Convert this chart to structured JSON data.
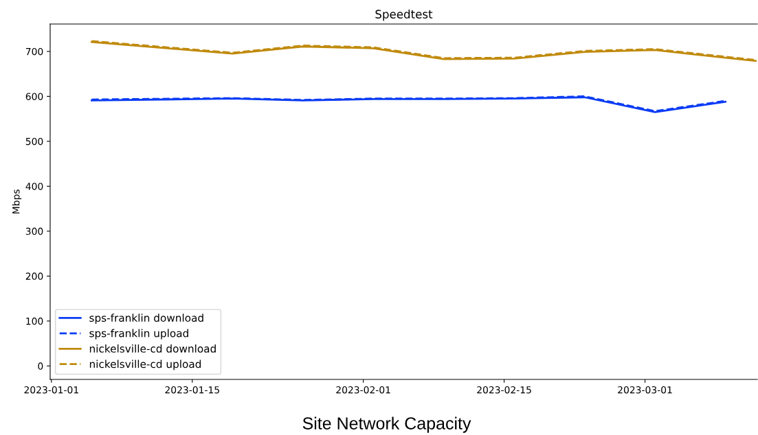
{
  "chart_data": {
    "type": "line",
    "title": "Speedtest",
    "ylabel": "Mbps",
    "annotations": [
      "Site Network Capacity"
    ],
    "x": [
      "2023-01-05",
      "2023-01-19",
      "2023-01-26",
      "2023-02-02",
      "2023-02-09",
      "2023-02-16",
      "2023-02-23",
      "2023-03-02",
      "2023-03-09"
    ],
    "series": [
      {
        "name": "sps-franklin download",
        "color": "#0a3cf5",
        "line_style": "solid",
        "values": [
          591,
          595,
          591,
          594,
          594,
          595,
          598,
          565,
          588
        ]
      },
      {
        "name": "sps-franklin upload",
        "color": "#0a3cf5",
        "line_style": "dashed",
        "values": [
          593,
          596,
          592,
          595,
          595,
          596,
          600,
          567,
          590
        ]
      },
      {
        "name": "nickelsville-cd download",
        "color": "#c08a0c",
        "line_style": "solid",
        "x": [
          "2023-01-05",
          "2023-01-19",
          "2023-01-26",
          "2023-02-02",
          "2023-02-09",
          "2023-02-16",
          "2023-02-23",
          "2023-03-02",
          "2023-03-09",
          "2023-03-12"
        ],
        "values": [
          721,
          695,
          711,
          707,
          683,
          684,
          699,
          703,
          686,
          679
        ]
      },
      {
        "name": "nickelsville-cd upload",
        "color": "#c08a0c",
        "line_style": "dashed",
        "x": [
          "2023-01-05",
          "2023-01-19",
          "2023-01-26",
          "2023-02-02",
          "2023-02-09",
          "2023-02-16",
          "2023-02-23",
          "2023-03-02",
          "2023-03-09",
          "2023-03-12"
        ],
        "values": [
          723,
          697,
          713,
          709,
          685,
          686,
          701,
          705,
          688,
          681
        ]
      }
    ],
    "xlim": [
      "2022-12-31T21:00",
      "2023-03-12T04:00"
    ],
    "xticks": [
      "2023-01-01",
      "2023-01-15",
      "2023-02-01",
      "2023-02-15",
      "2023-03-01"
    ],
    "ylim": [
      -30,
      761
    ],
    "yticks": [
      0,
      100,
      200,
      300,
      400,
      500,
      600,
      700
    ],
    "grid": false,
    "legend": "bottom left",
    "marker": "none"
  }
}
